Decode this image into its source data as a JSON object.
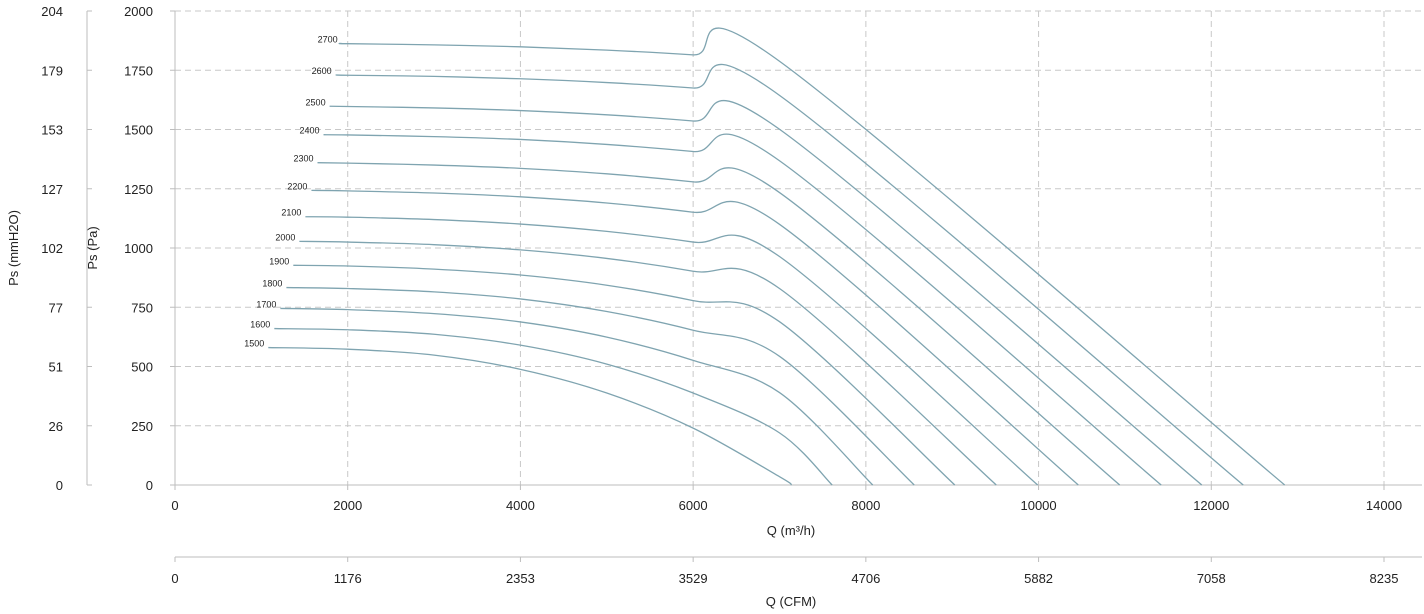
{
  "chart_data": {
    "type": "line",
    "xlabel": "Q (m³/h)",
    "x2label": "Q (CFM)",
    "ylabel": "Ps (Pa)",
    "y2label": "Ps (mmH2O)",
    "xlim": [
      0,
      14000
    ],
    "ylim": [
      0,
      2000
    ],
    "x_ticks": [
      "0",
      "2000",
      "4000",
      "6000",
      "8000",
      "10000",
      "12000",
      "14000"
    ],
    "y_ticks": [
      "0",
      "250",
      "500",
      "750",
      "1000",
      "1250",
      "1500",
      "1750",
      "2000"
    ],
    "y2_ticks": [
      "0",
      "26",
      "51",
      "77",
      "102",
      "127",
      "153",
      "179",
      "204"
    ],
    "x2_ticks": [
      "0",
      "1176",
      "2353",
      "3529",
      "4706",
      "5882",
      "7058",
      "8235"
    ],
    "grid": true,
    "line_color": "#7fa4b0",
    "series": [
      {
        "name": "1500",
        "x": [
          1080,
          2000,
          3000,
          4000,
          5000,
          6000,
          7000,
          7140
        ],
        "y": [
          580,
          573,
          548,
          488,
          388,
          240,
          35,
          0
        ]
      },
      {
        "name": "1600",
        "x": [
          1150,
          2000,
          3000,
          4000,
          5000,
          6000,
          7000,
          7610
        ],
        "y": [
          660,
          655,
          636,
          590,
          510,
          388,
          220,
          0
        ]
      },
      {
        "name": "1700",
        "x": [
          1220,
          2000,
          3000,
          4000,
          5000,
          6000,
          7000,
          8080
        ],
        "y": [
          745,
          740,
          723,
          688,
          624,
          526,
          390,
          0
        ]
      },
      {
        "name": "1800",
        "x": [
          1290,
          2000,
          3000,
          4000,
          5000,
          6000,
          7000,
          8560
        ],
        "y": [
          833,
          829,
          815,
          785,
          732,
          653,
          543,
          0
        ]
      },
      {
        "name": "1900",
        "x": [
          1370,
          2000,
          3000,
          4000,
          5000,
          6000,
          7000,
          9030
        ],
        "y": [
          927,
          924,
          911,
          886,
          843,
          778,
          689,
          0
        ]
      },
      {
        "name": "2000",
        "x": [
          1440,
          2000,
          3000,
          4000,
          5000,
          6000,
          7000,
          9510
        ],
        "y": [
          1028,
          1025,
          1014,
          992,
          956,
          902,
          829,
          0
        ]
      },
      {
        "name": "2100",
        "x": [
          1510,
          2000,
          3000,
          4000,
          5000,
          6000,
          7000,
          9990
        ],
        "y": [
          1132,
          1130,
          1120,
          1101,
          1070,
          1025,
          964,
          0
        ]
      },
      {
        "name": "2200",
        "x": [
          1580,
          2000,
          3000,
          4000,
          5000,
          6000,
          7000,
          10460
        ],
        "y": [
          1243,
          1241,
          1232,
          1216,
          1190,
          1151,
          1100,
          0
        ]
      },
      {
        "name": "2300",
        "x": [
          1650,
          2000,
          3000,
          4000,
          5000,
          6000,
          7000,
          10940
        ],
        "y": [
          1360,
          1358,
          1350,
          1336,
          1313,
          1279,
          1234,
          0
        ]
      },
      {
        "name": "2400",
        "x": [
          1720,
          2000,
          3000,
          4000,
          5000,
          6000,
          7000,
          11420
        ],
        "y": [
          1478,
          1477,
          1470,
          1458,
          1437,
          1407,
          1368,
          0
        ]
      },
      {
        "name": "2500",
        "x": [
          1790,
          2000,
          3000,
          4000,
          5000,
          6000,
          7000,
          11890
        ],
        "y": [
          1598,
          1597,
          1591,
          1580,
          1562,
          1536,
          1501,
          0
        ]
      },
      {
        "name": "2600",
        "x": [
          1860,
          2000,
          3000,
          4000,
          5000,
          6000,
          7000,
          12370
        ],
        "y": [
          1730,
          1729,
          1724,
          1714,
          1698,
          1675,
          1644,
          0
        ]
      },
      {
        "name": "2700",
        "x": [
          1930,
          2000,
          3000,
          4000,
          5000,
          6000,
          7000,
          12850
        ],
        "y": [
          1863,
          1862,
          1857,
          1849,
          1835,
          1815,
          1788,
          0
        ]
      }
    ]
  }
}
